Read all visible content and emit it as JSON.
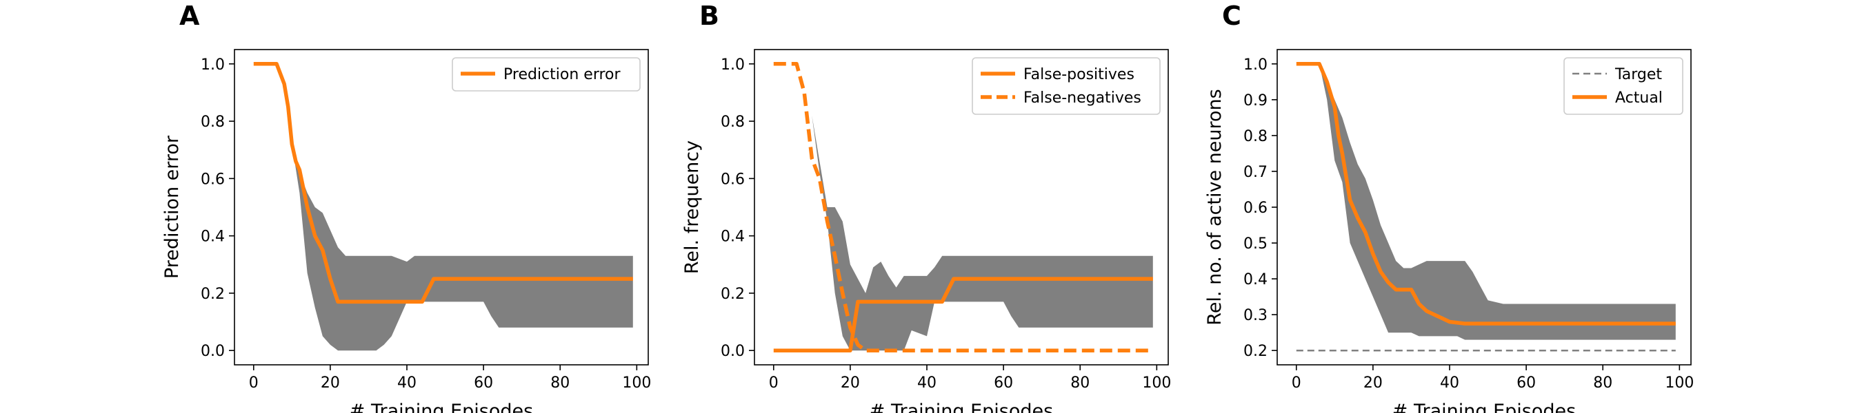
{
  "chart_data": [
    {
      "type": "line",
      "panel_label": "A",
      "title": "",
      "xlabel": "# Training Episodes",
      "ylabel": "Prediction error",
      "xlim": [
        -5,
        103
      ],
      "ylim": [
        -0.05,
        1.05
      ],
      "xticks": [
        0,
        20,
        40,
        60,
        80,
        100
      ],
      "yticks": [
        0.0,
        0.2,
        0.4,
        0.6,
        0.8,
        1.0
      ],
      "grid": false,
      "legend_position": "top-right",
      "band": {
        "color": "#808080",
        "x": [
          0,
          6,
          8,
          10,
          12,
          14,
          16,
          18,
          20,
          22,
          24,
          26,
          30,
          32,
          34,
          36,
          40,
          42,
          44,
          48,
          60,
          62,
          64,
          80,
          99
        ],
        "upper": [
          1,
          1,
          0.92,
          0.72,
          0.62,
          0.55,
          0.5,
          0.48,
          0.42,
          0.36,
          0.33,
          0.33,
          0.33,
          0.33,
          0.33,
          0.33,
          0.31,
          0.33,
          0.33,
          0.33,
          0.33,
          0.33,
          0.33,
          0.33,
          0.33
        ],
        "lower": [
          1,
          1,
          0.92,
          0.72,
          0.55,
          0.27,
          0.15,
          0.05,
          0.02,
          0,
          0,
          0,
          0,
          0,
          0.02,
          0.05,
          0.17,
          0.17,
          0.17,
          0.17,
          0.17,
          0.12,
          0.08,
          0.08,
          0.08
        ]
      },
      "series": [
        {
          "name": "Prediction error",
          "color": "#ff7f0e",
          "dash": "solid",
          "x": [
            0,
            6,
            8,
            9,
            10,
            11,
            12,
            14,
            16,
            18,
            20,
            22,
            30,
            40,
            44,
            47,
            60,
            80,
            99
          ],
          "values": [
            1,
            1,
            0.93,
            0.85,
            0.72,
            0.66,
            0.63,
            0.5,
            0.4,
            0.35,
            0.25,
            0.17,
            0.17,
            0.17,
            0.17,
            0.25,
            0.25,
            0.25,
            0.25
          ]
        }
      ]
    },
    {
      "type": "line",
      "panel_label": "B",
      "title": "",
      "xlabel": "# Training Episodes",
      "ylabel": "Rel. frequency",
      "xlim": [
        -5,
        103
      ],
      "ylim": [
        -0.05,
        1.05
      ],
      "xticks": [
        0,
        20,
        40,
        60,
        80,
        100
      ],
      "yticks": [
        0.0,
        0.2,
        0.4,
        0.6,
        0.8,
        1.0
      ],
      "grid": false,
      "legend_position": "top-right",
      "band": {
        "color": "#808080",
        "x": [
          0,
          6,
          8,
          10,
          12,
          14,
          16,
          18,
          20,
          22,
          24,
          26,
          28,
          30,
          32,
          34,
          36,
          40,
          42,
          44,
          48,
          60,
          62,
          64,
          80,
          99
        ],
        "upper": [
          1,
          1,
          0.95,
          0.82,
          0.66,
          0.5,
          0.5,
          0.45,
          0.3,
          0.25,
          0.2,
          0.29,
          0.31,
          0.26,
          0.22,
          0.26,
          0.26,
          0.26,
          0.29,
          0.33,
          0.33,
          0.33,
          0.33,
          0.33,
          0.33,
          0.33
        ],
        "lower": [
          1,
          1,
          0.95,
          0.82,
          0.62,
          0.45,
          0.2,
          0.05,
          0,
          0,
          0,
          0,
          0,
          0,
          0,
          0,
          0.07,
          0.05,
          0.17,
          0.17,
          0.17,
          0.17,
          0.12,
          0.08,
          0.08,
          0.08
        ]
      },
      "series": [
        {
          "name": "False-positives",
          "color": "#ff7f0e",
          "dash": "solid",
          "x": [
            0,
            18,
            20,
            22,
            30,
            40,
            44,
            47,
            60,
            80,
            99
          ],
          "values": [
            0,
            0,
            0,
            0.17,
            0.17,
            0.17,
            0.17,
            0.25,
            0.25,
            0.25,
            0.25
          ]
        },
        {
          "name": "False-negatives",
          "color": "#ff7f0e",
          "dash": "dashed",
          "x": [
            0,
            6,
            8,
            10,
            12,
            14,
            16,
            18,
            20,
            22,
            24,
            30,
            99
          ],
          "values": [
            1,
            1,
            0.9,
            0.67,
            0.6,
            0.45,
            0.33,
            0.2,
            0.08,
            0.02,
            0,
            0,
            0
          ]
        }
      ]
    },
    {
      "type": "line",
      "panel_label": "C",
      "title": "",
      "xlabel": "# Training Episodes",
      "ylabel": "Rel. no. of active neurons",
      "xlim": [
        -5,
        103
      ],
      "ylim": [
        0.16,
        1.04
      ],
      "xticks": [
        0,
        20,
        40,
        60,
        80,
        100
      ],
      "yticks": [
        0.2,
        0.3,
        0.4,
        0.5,
        0.6,
        0.7,
        0.8,
        0.9,
        1.0
      ],
      "grid": false,
      "legend_position": "top-right",
      "band": {
        "color": "#808080",
        "x": [
          0,
          6,
          8,
          10,
          12,
          14,
          16,
          18,
          20,
          22,
          24,
          26,
          28,
          30,
          32,
          34,
          36,
          40,
          42,
          44,
          46,
          48,
          50,
          54,
          60,
          80,
          99
        ],
        "upper": [
          1,
          1,
          0.95,
          0.9,
          0.85,
          0.78,
          0.72,
          0.68,
          0.62,
          0.55,
          0.5,
          0.45,
          0.43,
          0.43,
          0.44,
          0.45,
          0.45,
          0.45,
          0.45,
          0.45,
          0.42,
          0.38,
          0.34,
          0.33,
          0.33,
          0.33,
          0.33
        ],
        "lower": [
          1,
          1,
          0.9,
          0.73,
          0.67,
          0.5,
          0.45,
          0.4,
          0.35,
          0.3,
          0.25,
          0.25,
          0.25,
          0.25,
          0.24,
          0.24,
          0.24,
          0.24,
          0.24,
          0.23,
          0.23,
          0.23,
          0.23,
          0.23,
          0.23,
          0.23,
          0.23
        ]
      },
      "series": [
        {
          "name": "Target",
          "color": "#808080",
          "dash": "dashed",
          "x": [
            0,
            99
          ],
          "values": [
            0.2,
            0.2
          ]
        },
        {
          "name": "Actual",
          "color": "#ff7f0e",
          "dash": "solid",
          "x": [
            0,
            6,
            8,
            10,
            11,
            12,
            14,
            16,
            18,
            20,
            22,
            24,
            26,
            28,
            30,
            32,
            34,
            36,
            38,
            40,
            44,
            50,
            60,
            80,
            99
          ],
          "values": [
            1,
            1,
            0.95,
            0.88,
            0.8,
            0.75,
            0.62,
            0.57,
            0.53,
            0.47,
            0.42,
            0.39,
            0.37,
            0.37,
            0.37,
            0.33,
            0.31,
            0.3,
            0.29,
            0.28,
            0.275,
            0.275,
            0.275,
            0.275,
            0.275
          ]
        }
      ]
    }
  ]
}
